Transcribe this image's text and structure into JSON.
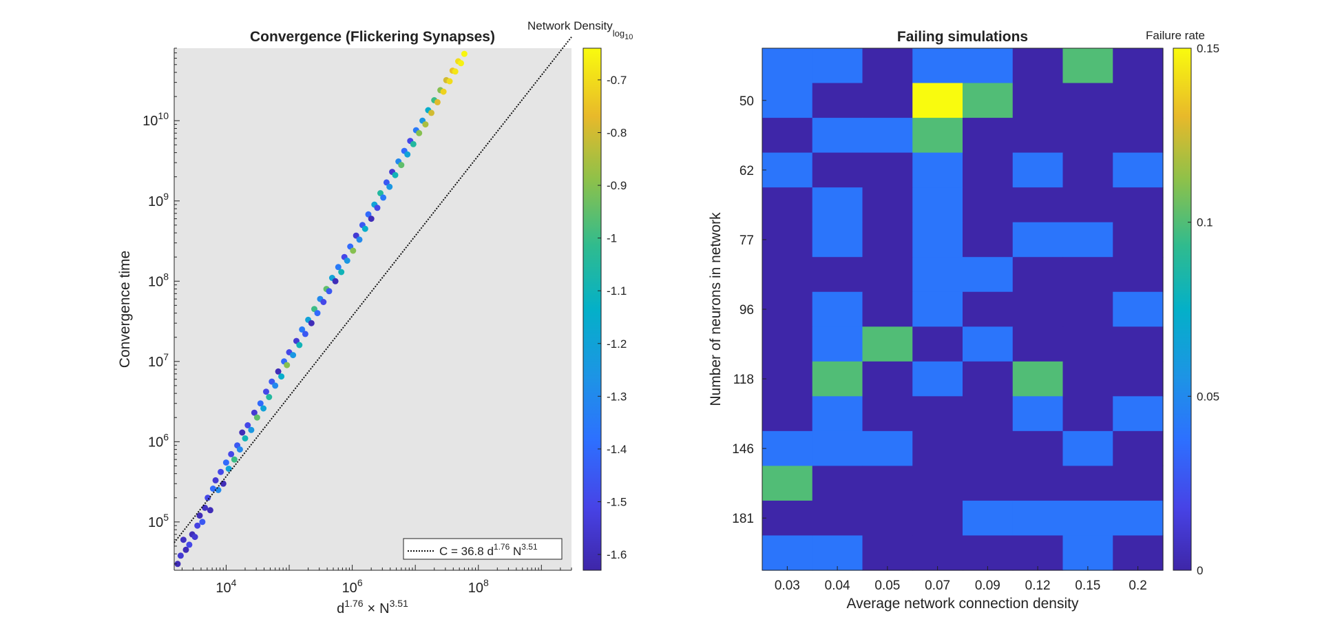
{
  "chart_data": [
    {
      "type": "scatter",
      "title": "Convergence (Flickering Synapses)",
      "xlabel": {
        "base": "d",
        "exp1": "1.76",
        "times": "×",
        "base2": "N",
        "exp2": "3.51"
      },
      "ylabel": "Convergence time",
      "xscale": "log",
      "yscale": "log",
      "xlim": [
        1500,
        3000000000
      ],
      "ylim": [
        25000,
        80000000000
      ],
      "xticks": [
        {
          "base": "10",
          "exp": "4",
          "v": 10000
        },
        {
          "base": "10",
          "exp": "6",
          "v": 1000000
        },
        {
          "base": "10",
          "exp": "8",
          "v": 100000000
        }
      ],
      "yticks": [
        {
          "base": "10",
          "exp": "5",
          "v": 100000
        },
        {
          "base": "10",
          "exp": "6",
          "v": 1000000
        },
        {
          "base": "10",
          "exp": "7",
          "v": 10000000
        },
        {
          "base": "10",
          "exp": "8",
          "v": 100000000
        },
        {
          "base": "10",
          "exp": "9",
          "v": 1000000000
        },
        {
          "base": "10",
          "exp": "10",
          "v": 10000000000
        }
      ],
      "background": "#e5e5e5",
      "fit": {
        "coefficient": 36.8,
        "exponent": 1.0,
        "legend": {
          "prefix": "C = 36.8 d",
          "e1": "1.76",
          "mid": " N",
          "e2": "3.51"
        },
        "legend_position": "bottom-right"
      },
      "colorbar": {
        "title": "Network Density",
        "title_sub": "log",
        "title_sub2": "10",
        "colormap": "parula",
        "range": [
          -1.63,
          -0.64
        ],
        "ticks": [
          "-0.7",
          "-0.8",
          "-0.9",
          "-1",
          "-1.1",
          "-1.2",
          "-1.3",
          "-1.4",
          "-1.5",
          "-1.6"
        ],
        "tick_values": [
          -0.7,
          -0.8,
          -0.9,
          -1.0,
          -1.1,
          -1.2,
          -1.3,
          -1.4,
          -1.5,
          -1.6
        ]
      },
      "series": [
        {
          "points": [
            [
              1700,
              30000,
              -1.6
            ],
            [
              1900,
              38000,
              -1.55
            ],
            [
              2100,
              60000,
              -1.58
            ],
            [
              2300,
              45000,
              -1.6
            ],
            [
              2600,
              52000,
              -1.5
            ],
            [
              2900,
              70000,
              -1.6
            ],
            [
              3200,
              65000,
              -1.55
            ],
            [
              3500,
              90000,
              -1.52
            ],
            [
              3800,
              120000,
              -1.6
            ],
            [
              4200,
              100000,
              -1.45
            ],
            [
              4600,
              150000,
              -1.58
            ],
            [
              5100,
              200000,
              -1.5
            ],
            [
              5600,
              140000,
              -1.6
            ],
            [
              6200,
              260000,
              -1.4
            ],
            [
              6800,
              330000,
              -1.55
            ],
            [
              7500,
              250000,
              -1.3
            ],
            [
              8200,
              420000,
              -1.5
            ],
            [
              9000,
              300000,
              -1.6
            ],
            [
              10000,
              550000,
              -1.4
            ],
            [
              11000,
              460000,
              -1.2
            ],
            [
              12000,
              700000,
              -1.5
            ],
            [
              13500,
              600000,
              -1.0
            ],
            [
              15000,
              900000,
              -1.45
            ],
            [
              16500,
              800000,
              -1.3
            ],
            [
              18000,
              1300000,
              -1.6
            ],
            [
              20000,
              1100000,
              -1.1
            ],
            [
              22000,
              1600000,
              -1.5
            ],
            [
              25000,
              1400000,
              -1.25
            ],
            [
              28000,
              2300000,
              -1.55
            ],
            [
              31000,
              2000000,
              -0.95
            ],
            [
              35000,
              3000000,
              -1.4
            ],
            [
              39000,
              2600000,
              -1.2
            ],
            [
              43000,
              4200000,
              -1.5
            ],
            [
              48000,
              3600000,
              -1.05
            ],
            [
              53000,
              5600000,
              -1.45
            ],
            [
              60000,
              5000000,
              -1.3
            ],
            [
              67000,
              7500000,
              -1.6
            ],
            [
              75000,
              6500000,
              -1.15
            ],
            [
              83000,
              10000000,
              -1.4
            ],
            [
              92000,
              9000000,
              -0.9
            ],
            [
              100000,
              13000000,
              -1.5
            ],
            [
              115000,
              12000000,
              -1.25
            ],
            [
              130000,
              18000000,
              -1.55
            ],
            [
              145000,
              16000000,
              -1.1
            ],
            [
              160000,
              25000000,
              -1.35
            ],
            [
              180000,
              22000000,
              -1.45
            ],
            [
              200000,
              33000000,
              -1.2
            ],
            [
              225000,
              30000000,
              -1.6
            ],
            [
              250000,
              45000000,
              -1.0
            ],
            [
              280000,
              40000000,
              -1.4
            ],
            [
              310000,
              60000000,
              -1.3
            ],
            [
              350000,
              55000000,
              -1.5
            ],
            [
              390000,
              80000000,
              -0.95
            ],
            [
              430000,
              75000000,
              -1.45
            ],
            [
              480000,
              110000000,
              -1.2
            ],
            [
              540000,
              100000000,
              -1.6
            ],
            [
              600000,
              150000000,
              -1.35
            ],
            [
              670000,
              130000000,
              -1.1
            ],
            [
              750000,
              200000000,
              -1.5
            ],
            [
              830000,
              180000000,
              -1.25
            ],
            [
              930000,
              270000000,
              -1.4
            ],
            [
              1030000,
              240000000,
              -0.9
            ],
            [
              1150000,
              370000000,
              -1.55
            ],
            [
              1300000,
              330000000,
              -1.3
            ],
            [
              1450000,
              500000000,
              -1.45
            ],
            [
              1600000,
              450000000,
              -1.15
            ],
            [
              1800000,
              680000000,
              -1.4
            ],
            [
              2000000,
              600000000,
              -1.6
            ],
            [
              2250000,
              900000000,
              -1.2
            ],
            [
              2500000,
              820000000,
              -1.5
            ],
            [
              2800000,
              1250000000,
              -1.05
            ],
            [
              3100000,
              1100000000,
              -1.35
            ],
            [
              3500000,
              1700000000,
              -1.45
            ],
            [
              3900000,
              1500000000,
              -1.25
            ],
            [
              4300000,
              2300000000,
              -1.55
            ],
            [
              4800000,
              2100000000,
              -1.1
            ],
            [
              5400000,
              3100000000,
              -1.3
            ],
            [
              6000000,
              2800000000,
              -0.95
            ],
            [
              6700000,
              4200000000,
              -1.4
            ],
            [
              7500000,
              3800000000,
              -1.2
            ],
            [
              8300000,
              5600000000,
              -1.5
            ],
            [
              9300000,
              5100000000,
              -1.05
            ],
            [
              10300000,
              7600000000,
              -1.35
            ],
            [
              11500000,
              7000000000,
              -0.9
            ],
            [
              13000000,
              10000000000,
              -1.25
            ],
            [
              14500000,
              9000000000,
              -0.85
            ],
            [
              16000000,
              13500000000,
              -1.15
            ],
            [
              18000000,
              12500000000,
              -0.8
            ],
            [
              20000000,
              18000000000,
              -1.0
            ],
            [
              22500000,
              17000000000,
              -0.78
            ],
            [
              25000000,
              24000000000,
              -0.9
            ],
            [
              28000000,
              23000000000,
              -0.72
            ],
            [
              31000000,
              32000000000,
              -0.8
            ],
            [
              35000000,
              31000000000,
              -0.7
            ],
            [
              39000000,
              42000000000,
              -0.75
            ],
            [
              43000000,
              41000000000,
              -0.68
            ],
            [
              48000000,
              55000000000,
              -0.7
            ],
            [
              53000000,
              52000000000,
              -0.66
            ],
            [
              60000000,
              68000000000,
              -0.65
            ]
          ]
        }
      ]
    },
    {
      "type": "heatmap",
      "title": "Failing simulations",
      "xlabel": "Average network connection density",
      "ylabel": "Number of neurons in network",
      "x_ticks": [
        "0.03",
        "0.04",
        "0.05",
        "0.07",
        "0.09",
        "0.12",
        "0.15",
        "0.2"
      ],
      "y_ticks": [
        "50",
        "62",
        "77",
        "96",
        "118",
        "146",
        "181"
      ],
      "colorbar": {
        "title": "Failure rate",
        "colormap": "parula",
        "range": [
          0,
          0.15
        ],
        "ticks": [
          "0.15",
          "0.1",
          "0.05",
          "0"
        ],
        "tick_values": [
          0.15,
          0.1,
          0.05,
          0
        ]
      },
      "values": [
        [
          0.04,
          0.04,
          0.0,
          0.04,
          0.04,
          0.0,
          0.1,
          0.0
        ],
        [
          0.04,
          0.0,
          0.0,
          0.15,
          0.1,
          0.0,
          0.0,
          0.0
        ],
        [
          0.0,
          0.04,
          0.04,
          0.1,
          0.0,
          0.0,
          0.0,
          0.0
        ],
        [
          0.04,
          0.0,
          0.0,
          0.04,
          0.0,
          0.04,
          0.0,
          0.04
        ],
        [
          0.0,
          0.04,
          0.0,
          0.04,
          0.0,
          0.0,
          0.0,
          0.0
        ],
        [
          0.0,
          0.04,
          0.0,
          0.04,
          0.0,
          0.04,
          0.04,
          0.0
        ],
        [
          0.0,
          0.0,
          0.0,
          0.04,
          0.04,
          0.0,
          0.0,
          0.0
        ],
        [
          0.0,
          0.04,
          0.0,
          0.04,
          0.0,
          0.0,
          0.0,
          0.04
        ],
        [
          0.0,
          0.04,
          0.1,
          0.0,
          0.04,
          0.0,
          0.0,
          0.0
        ],
        [
          0.0,
          0.1,
          0.0,
          0.04,
          0.0,
          0.1,
          0.0,
          0.0
        ],
        [
          0.0,
          0.04,
          0.0,
          0.0,
          0.0,
          0.04,
          0.0,
          0.04
        ],
        [
          0.04,
          0.04,
          0.04,
          0.0,
          0.0,
          0.0,
          0.04,
          0.0
        ],
        [
          0.1,
          0.0,
          0.0,
          0.0,
          0.0,
          0.0,
          0.0,
          0.0
        ],
        [
          0.0,
          0.0,
          0.0,
          0.0,
          0.04,
          0.04,
          0.04,
          0.04
        ],
        [
          0.04,
          0.04,
          0.0,
          0.0,
          0.0,
          0.0,
          0.04,
          0.0
        ]
      ]
    }
  ]
}
